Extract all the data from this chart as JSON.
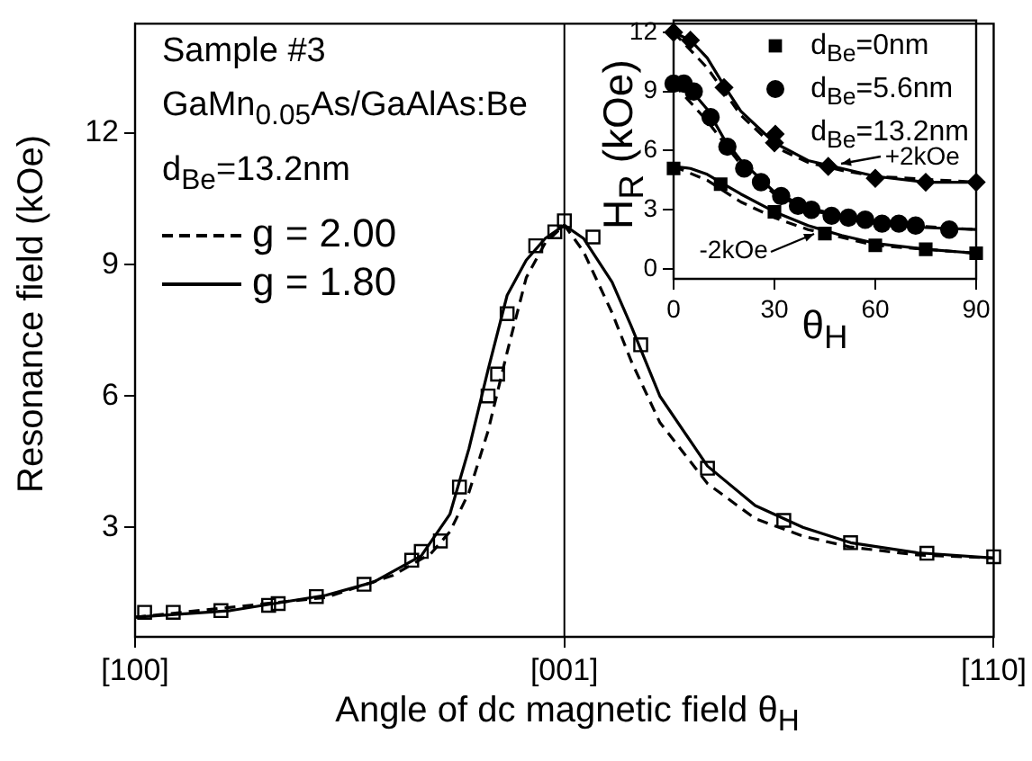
{
  "chart_data": [
    {
      "type": "line",
      "ylabel": "Resonance field (kOe)",
      "xlabel": "Angle of dc magnetic field θ$_{H}$",
      "annotations": [
        "Sample #3",
        "GaMn$_{0.05}$As/GaAlAs:Be",
        "d$_{Be}$=13.2nm"
      ],
      "categories": [
        "[100]",
        null,
        null,
        null,
        null,
        null,
        null,
        null,
        null,
        null,
        null,
        null,
        null,
        null,
        null,
        null,
        null,
        null,
        null,
        null,
        null,
        null,
        null,
        null,
        null,
        null,
        null,
        null,
        null,
        null,
        null,
        null,
        null,
        null,
        null,
        null,
        null,
        null,
        null,
        null,
        null,
        null,
        null,
        null,
        null,
        "[001]",
        null,
        null,
        null,
        null,
        null,
        null,
        null,
        null,
        null,
        null,
        null,
        null,
        null,
        null,
        null,
        null,
        null,
        null,
        null,
        null,
        null,
        null,
        null,
        null,
        null,
        null,
        null,
        null,
        null,
        null,
        null,
        null,
        null,
        null,
        null,
        null,
        null,
        null,
        null,
        null,
        null,
        null,
        null,
        null,
        "[110]"
      ],
      "ylim": [
        0.5,
        14.5
      ],
      "yticks": [
        3,
        6,
        9,
        12
      ],
      "grid": false,
      "legend": "top left",
      "ref_lines": [
        {
          "axis": "x",
          "value": "[001]",
          "color": "#000000"
        }
      ],
      "series": [
        {
          "type": "scatter",
          "marker": "square",
          "color": "#000000",
          "values": [
            null,
            1.06,
            null,
            null,
            1.06,
            null,
            null,
            null,
            null,
            1.1,
            null,
            null,
            null,
            null,
            1.22,
            1.26,
            null,
            null,
            null,
            1.42,
            null,
            null,
            null,
            null,
            1.7,
            null,
            null,
            null,
            null,
            2.25,
            2.45,
            null,
            2.69,
            null,
            3.92,
            null,
            null,
            6.0,
            6.5,
            7.88,
            null,
            null,
            9.43,
            null,
            9.75,
            10.0,
            null,
            null,
            9.63,
            null,
            null,
            null,
            null,
            7.17,
            null,
            null,
            null,
            null,
            null,
            null,
            4.35,
            null,
            null,
            null,
            null,
            null,
            null,
            null,
            3.16,
            null,
            null,
            null,
            null,
            null,
            null,
            2.65,
            null,
            null,
            null,
            null,
            null,
            null,
            null,
            2.41,
            null,
            null,
            null,
            null,
            null,
            null,
            2.33
          ]
        },
        {
          "type": "line",
          "name": "g = 2.00",
          "line_style": "dashed",
          "marker": "none",
          "color": "#000000",
          "values": [
            0.95,
            null,
            null,
            null,
            null,
            null,
            null,
            null,
            null,
            null,
            null,
            null,
            null,
            null,
            null,
            null,
            null,
            null,
            null,
            null,
            1.4,
            null,
            null,
            null,
            null,
            null,
            null,
            1.9,
            null,
            null,
            null,
            2.4,
            null,
            2.9,
            null,
            3.8,
            null,
            5.2,
            null,
            7.0,
            null,
            8.7,
            null,
            9.5,
            null,
            9.9,
            null,
            9.3,
            null,
            null,
            7.9,
            null,
            6.8,
            null,
            null,
            5.4,
            null,
            null,
            null,
            null,
            4.0,
            null,
            null,
            null,
            null,
            3.2,
            null,
            null,
            null,
            null,
            2.8,
            null,
            null,
            null,
            null,
            2.55,
            null,
            null,
            null,
            null,
            null,
            null,
            2.37,
            null,
            null,
            null,
            null,
            null,
            null,
            null,
            2.3
          ]
        },
        {
          "type": "line",
          "name": "g = 1.80",
          "line_style": "solid",
          "marker": "none",
          "color": "#000000",
          "values": [
            0.95,
            null,
            null,
            null,
            null,
            null,
            null,
            null,
            null,
            null,
            1.1,
            null,
            null,
            null,
            null,
            null,
            null,
            null,
            null,
            null,
            1.45,
            null,
            null,
            null,
            null,
            1.75,
            null,
            null,
            null,
            null,
            2.35,
            null,
            null,
            3.3,
            null,
            4.8,
            null,
            6.6,
            null,
            8.3,
            null,
            9.1,
            null,
            9.6,
            null,
            9.9,
            null,
            9.6,
            null,
            null,
            8.6,
            null,
            7.6,
            null,
            null,
            6.0,
            null,
            null,
            null,
            null,
            4.4,
            null,
            null,
            null,
            null,
            3.5,
            null,
            null,
            null,
            null,
            3.0,
            null,
            null,
            null,
            null,
            2.65,
            null,
            null,
            null,
            null,
            null,
            null,
            2.42,
            null,
            null,
            null,
            null,
            null,
            null,
            null,
            2.3
          ]
        }
      ]
    },
    {
      "type": "line",
      "ylabel": "H$_{R}$ (kOe)",
      "xlabel": "θ$_{H}$",
      "annotations": [
        {
          "text": "+2kOe",
          "x": 50,
          "y": 5.3
        },
        {
          "text": "-2kOe",
          "x": 42,
          "y": 1.8
        }
      ],
      "xlim": [
        0,
        90
      ],
      "xticks": [
        0,
        30,
        60,
        90
      ],
      "ylim": [
        -0.5,
        12.6
      ],
      "yticks": [
        0,
        3,
        6,
        9,
        12
      ],
      "grid": false,
      "legend": "top right",
      "series": [
        {
          "type": "scatter",
          "name": "d$_{Be}$=0nm",
          "marker": "square",
          "color": "#000000",
          "x": [
            0,
            14,
            30,
            45,
            60,
            75,
            90
          ],
          "values": [
            5.1,
            4.3,
            2.9,
            1.8,
            1.2,
            1.0,
            0.8
          ]
        },
        {
          "type": "scatter",
          "name": "d$_{Be}$=5.6nm",
          "marker": "circle",
          "color": "#000000",
          "x": [
            0,
            3,
            6,
            11,
            16,
            21,
            26,
            32,
            37,
            41,
            47,
            52,
            57,
            62,
            67,
            72,
            82
          ],
          "values": [
            9.4,
            9.4,
            9.0,
            7.7,
            6.2,
            5.1,
            4.4,
            3.7,
            3.2,
            3.0,
            2.7,
            2.6,
            2.5,
            2.3,
            2.3,
            2.2,
            2.0
          ]
        },
        {
          "type": "scatter",
          "name": "d$_{Be}$=13.2nm",
          "marker": "diamond",
          "color": "#000000",
          "x": [
            0,
            5,
            15,
            30,
            46,
            60,
            75,
            90
          ],
          "values": [
            12.0,
            11.6,
            9.2,
            6.4,
            5.2,
            4.6,
            4.4,
            4.4
          ]
        },
        {
          "type": "line",
          "line_style": "solid",
          "marker": "none",
          "color": "#000000",
          "x": [
            0,
            5,
            10,
            15,
            20,
            30,
            40,
            50,
            60,
            75,
            90
          ],
          "values": [
            5.2,
            5.1,
            4.8,
            4.3,
            3.8,
            2.9,
            2.2,
            1.7,
            1.3,
            1.0,
            0.8
          ]
        },
        {
          "type": "line",
          "line_style": "solid",
          "marker": "none",
          "color": "#000000",
          "x": [
            0,
            5,
            10,
            15,
            20,
            30,
            40,
            50,
            60,
            75,
            90
          ],
          "values": [
            9.4,
            9.1,
            8.1,
            6.6,
            5.5,
            3.9,
            3.1,
            2.7,
            2.4,
            2.1,
            2.0
          ]
        },
        {
          "type": "line",
          "line_style": "solid",
          "marker": "none",
          "color": "#000000",
          "x": [
            0,
            5,
            10,
            15,
            20,
            30,
            40,
            50,
            60,
            75,
            90
          ],
          "values": [
            12.0,
            11.6,
            10.7,
            9.3,
            8.0,
            6.4,
            5.5,
            5.1,
            4.7,
            4.4,
            4.4
          ]
        },
        {
          "type": "line",
          "line_style": "dashed",
          "marker": "none",
          "color": "#000000",
          "x": [
            0,
            10,
            20,
            30,
            40,
            60,
            90
          ],
          "values": [
            5.2,
            4.5,
            3.4,
            2.6,
            2.0,
            1.2,
            0.8
          ]
        },
        {
          "type": "line",
          "line_style": "dashed",
          "marker": "none",
          "color": "#000000",
          "x": [
            0,
            10,
            20,
            30,
            40,
            60,
            90
          ],
          "values": [
            9.4,
            7.5,
            5.3,
            3.8,
            3.0,
            2.3,
            2.0
          ]
        },
        {
          "type": "line",
          "line_style": "dashed",
          "marker": "none",
          "color": "#000000",
          "x": [
            0,
            10,
            20,
            30,
            40,
            50,
            60,
            90
          ],
          "values": [
            12.0,
            10.2,
            7.8,
            6.2,
            5.4,
            5.0,
            4.7,
            4.4
          ]
        }
      ]
    }
  ]
}
